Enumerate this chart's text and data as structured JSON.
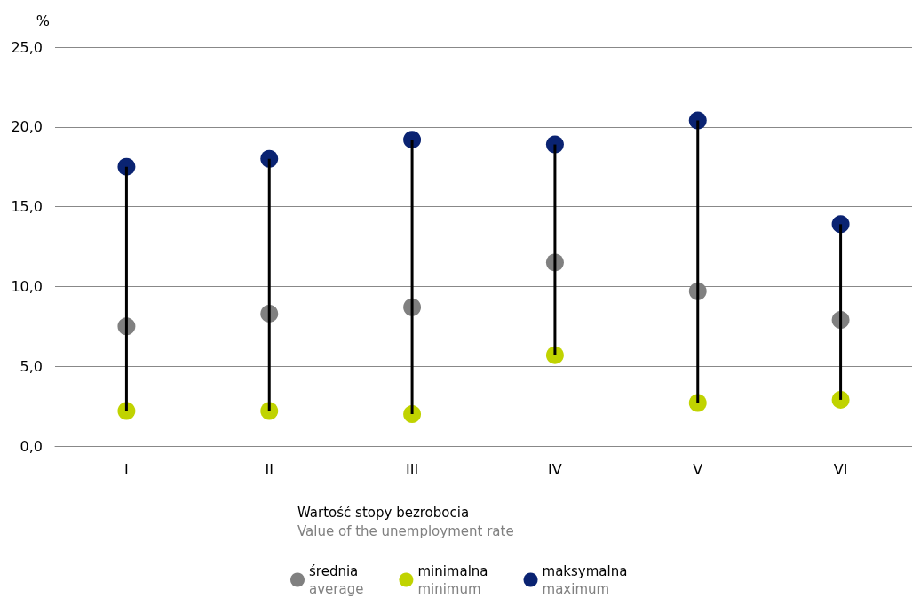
{
  "chart_data": {
    "type": "scatter",
    "ylabel": "%",
    "legend_title": "Wartość stopy bezrobocia\nValue of the unemployment rate",
    "categories": [
      "I",
      "II",
      "III",
      "IV",
      "V",
      "VI"
    ],
    "series": [
      {
        "type": "bar",
        "color": "#000000",
        "base": [
          2.2,
          2.2,
          2.0,
          5.7,
          2.7,
          2.9
        ],
        "values": [
          15.3,
          15.8,
          17.2,
          13.2,
          17.7,
          11.0
        ]
      },
      {
        "name": "średnia\naverage",
        "color": "#808080",
        "x": [
          "I",
          "II",
          "III",
          "IV",
          "V",
          "VI"
        ],
        "values": [
          7.5,
          8.3,
          8.7,
          11.5,
          9.7,
          7.9
        ]
      },
      {
        "name": "minimalna\nminimum",
        "color": "#c0d300",
        "x": [
          "I",
          "II",
          "III",
          "IV",
          "V",
          "VI"
        ],
        "values": [
          2.2,
          2.2,
          2.0,
          5.7,
          2.7,
          2.9
        ]
      },
      {
        "name": "maksymalna\nmaximum",
        "color": "#0a2372",
        "x": [
          "I",
          "II",
          "III",
          "IV",
          "V",
          "VI"
        ],
        "values": [
          17.5,
          18.0,
          19.2,
          18.9,
          20.4,
          13.9
        ]
      }
    ],
    "ylim": [
      0,
      25
    ],
    "yticks": [
      {
        "value": 0,
        "label": "0,0"
      },
      {
        "value": 5,
        "label": "5,0"
      },
      {
        "value": 10,
        "label": "10,0"
      },
      {
        "value": 15,
        "label": "15,0"
      },
      {
        "value": 20,
        "label": "20,0"
      },
      {
        "value": 25,
        "label": "25,0"
      }
    ],
    "grid": "y",
    "legend": "bottom",
    "marker": "circle"
  }
}
